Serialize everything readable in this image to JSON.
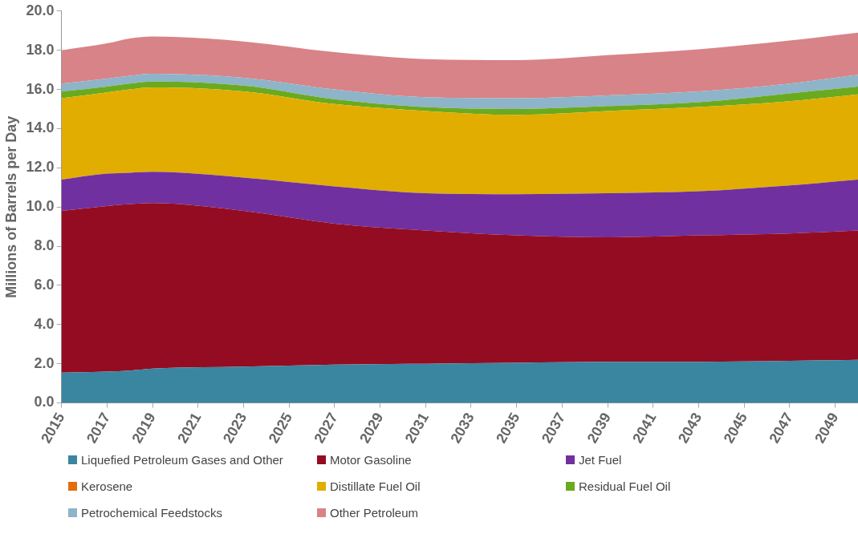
{
  "chart_data": {
    "type": "area",
    "stacked": true,
    "ylabel": "Millions of Barrels per Day",
    "x": [
      2015,
      2017,
      2018,
      2019,
      2023,
      2027,
      2031,
      2035,
      2039,
      2043,
      2047,
      2050
    ],
    "xlim": [
      2015,
      2050
    ],
    "xticks": [
      2015,
      2017,
      2019,
      2021,
      2023,
      2025,
      2027,
      2029,
      2031,
      2033,
      2035,
      2037,
      2039,
      2041,
      2043,
      2045,
      2047,
      2049
    ],
    "ylim": [
      0,
      20
    ],
    "yticks": [
      {
        "value": 0,
        "label": "0.0"
      },
      {
        "value": 2,
        "label": "2.0"
      },
      {
        "value": 4,
        "label": "4.0"
      },
      {
        "value": 6,
        "label": "6.0"
      },
      {
        "value": 8,
        "label": "8.0"
      },
      {
        "value": 10,
        "label": "10.0"
      },
      {
        "value": 12,
        "label": "12.0"
      },
      {
        "value": 14,
        "label": "14.0"
      },
      {
        "value": 16,
        "label": "16.0"
      },
      {
        "value": 18,
        "label": "18.0"
      },
      {
        "value": 20,
        "label": "20.0"
      }
    ],
    "grid": false,
    "legend": "bottom",
    "series": [
      {
        "name": "Liquefied Petroleum Gases and Other",
        "color": "#3a85a0",
        "values": [
          1.55,
          1.6,
          1.65,
          1.75,
          1.85,
          1.95,
          2.0,
          2.05,
          2.1,
          2.1,
          2.15,
          2.2
        ]
      },
      {
        "name": "Motor Gasoline",
        "color": "#940c22",
        "values": [
          8.25,
          8.45,
          8.5,
          8.45,
          7.95,
          7.2,
          6.8,
          6.5,
          6.35,
          6.45,
          6.5,
          6.6
        ]
      },
      {
        "name": "Jet Fuel",
        "color": "#7030a0",
        "values": [
          1.6,
          1.65,
          1.6,
          1.6,
          1.7,
          1.9,
          1.9,
          2.1,
          2.25,
          2.25,
          2.45,
          2.6
        ]
      },
      {
        "name": "Kerosene",
        "color": "#e46c0a",
        "values": [
          null,
          null,
          null,
          null,
          null,
          null,
          null,
          null,
          null,
          null,
          null,
          null
        ]
      },
      {
        "name": "Distillate Fuel Oil",
        "color": "#e1ad01",
        "values": [
          4.15,
          4.15,
          4.25,
          4.3,
          4.4,
          4.2,
          4.2,
          4.05,
          4.2,
          4.3,
          4.3,
          4.35
        ]
      },
      {
        "name": "Residual Fuel Oil",
        "color": "#6aaa1e",
        "values": [
          0.35,
          0.3,
          0.3,
          0.3,
          0.3,
          0.25,
          0.2,
          0.3,
          0.25,
          0.25,
          0.4,
          0.4
        ]
      },
      {
        "name": "Petrochemical Feedstocks",
        "color": "#8db4c8",
        "values": [
          0.4,
          0.4,
          0.4,
          0.4,
          0.4,
          0.5,
          0.5,
          0.55,
          0.55,
          0.55,
          0.5,
          0.6
        ]
      },
      {
        "name": "Other Petroleum",
        "color": "#d88387",
        "values": [
          1.7,
          1.8,
          1.9,
          1.9,
          1.85,
          1.9,
          1.95,
          1.95,
          2.05,
          2.15,
          2.2,
          2.15
        ]
      }
    ]
  }
}
